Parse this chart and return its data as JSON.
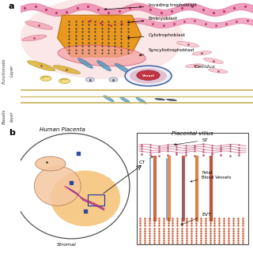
{
  "panel_a_label": "a",
  "panel_b_label": "b",
  "labels_top": [
    "Invading trophoblast",
    "Embryoblast",
    "Cytotrophoblast",
    "Syncytiotrophoblast"
  ],
  "decidua_text": "Decidua",
  "vessel_text": "Vessel",
  "human_placenta_text": "Human Placenta",
  "placental_villus_text": "Placental villus",
  "stromal_text": "Stromal",
  "st_text": "ST",
  "ct_text": "CT",
  "fetal_text": "Fetal\nBlood Vessels",
  "evt_text": "EVT",
  "bg_color": "#ffffff",
  "pink_light": "#f9d0d0",
  "pink_medium": "#f4a0a0",
  "orange_color": "#e8900a",
  "gold_color": "#c8a020",
  "blue_teal": "#5090b0",
  "skin_color": "#f5c8a0"
}
